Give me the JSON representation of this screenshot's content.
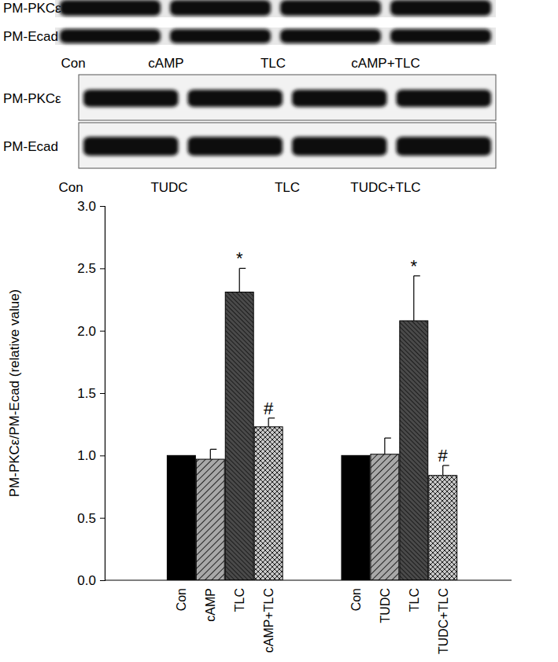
{
  "blots": [
    {
      "rows": [
        "PM-PKCε",
        "PM-Ecad"
      ],
      "lanes": [
        "Con",
        "cAMP",
        "TLC",
        "cAMP+TLC"
      ]
    },
    {
      "rows": [
        "PM-PKCε",
        "PM-Ecad"
      ],
      "lanes": [
        "Con",
        "TUDC",
        "TLC",
        "TUDC+TLC"
      ]
    }
  ],
  "chart_data": {
    "type": "bar",
    "y_label": "PM-PKCε/PM-Ecad (relative value)",
    "categories": [
      "Con",
      "cAMP",
      "TLC",
      "cAMP+TLC",
      "Con",
      "TUDC",
      "TLC",
      "TUDC+TLC"
    ],
    "values": [
      1.0,
      0.97,
      2.31,
      1.23,
      1.0,
      1.01,
      2.08,
      0.84
    ],
    "errors": [
      null,
      0.08,
      0.19,
      0.07,
      null,
      0.13,
      0.36,
      0.08
    ],
    "annotations": [
      null,
      null,
      "*",
      "#",
      null,
      null,
      "*",
      "#"
    ],
    "colors": [
      "#000000",
      "#a8a8a8",
      "#4a4a4a",
      "#c8c8c8",
      "#000000",
      "#a8a8a8",
      "#4a4a4a",
      "#c8c8c8"
    ],
    "ylim": [
      0,
      3
    ],
    "yticks": [
      {
        "value": 0,
        "label": "0.0"
      },
      0.5,
      {
        "value": 1,
        "label": "1.0"
      },
      1.5,
      {
        "value": 2,
        "label": "2.0"
      },
      2.5,
      {
        "value": 3,
        "label": "3.0"
      }
    ]
  }
}
